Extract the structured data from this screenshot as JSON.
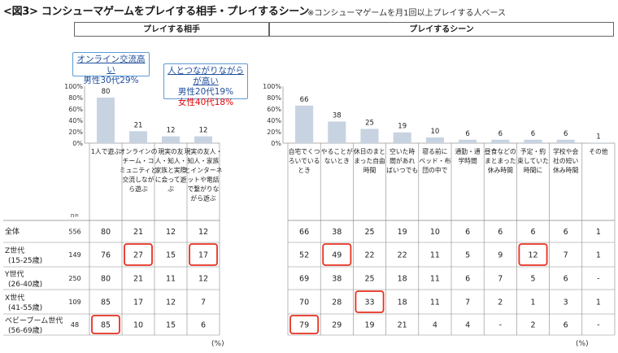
{
  "header": {
    "title": "<図3> コンシューマゲームをプレイする相手・プレイするシーン",
    "note": "※コンシューマゲームを月1回以上プレイする人ベース"
  },
  "sections": {
    "left": "プレイする相手",
    "right": "プレイするシーン"
  },
  "callouts": {
    "left": {
      "line1": "オンライン交流高い",
      "line2": "男性30代29%"
    },
    "right": {
      "line1": "人とつながりながらが高い",
      "line2": "男性20代19%",
      "line3": "女性40代18%"
    }
  },
  "colors": {
    "bar": "#c8d3e2",
    "highlight": "#e83020",
    "callout_border": "#5b9bd5"
  },
  "chart_data": {
    "type": "bar",
    "title": "コンシューマゲームをプレイする相手・プレイするシーン",
    "ylim": [
      0,
      100
    ],
    "yticks": [
      "100%",
      "80%",
      "60%",
      "40%",
      "20%",
      "0%"
    ],
    "n_label": "n=",
    "unit": "(%)",
    "groups": [
      {
        "name": "プレイする相手",
        "categories": [
          "1人で遊ぶ",
          "オンラインのチーム・コミュニティと交流しながら遊ぶ",
          "現実の友人・知人・家族と実際に会って遊ぶ",
          "現実の友人・知人・家族とインターネットや電話で繋がりながら遊ぶ"
        ],
        "category_lines": [
          [
            "1人で遊ぶ"
          ],
          [
            "オンラインの",
            "チーム・コ",
            "ミュニティと",
            "交流しなが",
            "ら遊ぶ"
          ],
          [
            "現実の友",
            "人・知人・",
            "家族と実際",
            "に会って遊",
            "ぶ"
          ],
          [
            "現実の友人・",
            "知人・家族",
            "とインターネ",
            "ットや電話",
            "で繋がりな",
            "がら遊ぶ"
          ]
        ],
        "values": [
          80,
          21,
          12,
          12
        ]
      },
      {
        "name": "プレイするシーン",
        "categories": [
          "自宅でくつろいでいるとき",
          "やることがないとき",
          "休日のまとまった自由時間",
          "空いた時間があればいつでも",
          "寝る前にベッド・布団の中で",
          "通勤・通学時間",
          "昼食などのまとまった休み時間",
          "予定・約束していた時間に",
          "学校や会社の短い休み時間",
          "その他"
        ],
        "category_lines": [
          [
            "自宅でくつ",
            "ろいでいる",
            "とき"
          ],
          [
            "やることが",
            "ないとき"
          ],
          [
            "休日のまと",
            "まった自由",
            "時間"
          ],
          [
            "空いた時",
            "間があれ",
            "ばいつでも"
          ],
          [
            "寝る前に",
            "ベッド・布",
            "団の中で"
          ],
          [
            "通勤・通",
            "学時間"
          ],
          [
            "昼食などの",
            "まとまった",
            "休み時間"
          ],
          [
            "予定・約",
            "束していた",
            "時間に"
          ],
          [
            "学校や会",
            "社の短い",
            "休み時間"
          ],
          [
            "その他"
          ]
        ],
        "values": [
          66,
          38,
          25,
          19,
          10,
          6,
          6,
          6,
          6,
          1
        ]
      }
    ],
    "rows": [
      {
        "label": "全体",
        "sub": "",
        "n": "556",
        "left": [
          "80",
          "21",
          "12",
          "12"
        ],
        "right": [
          "66",
          "38",
          "25",
          "19",
          "10",
          "6",
          "6",
          "6",
          "6",
          "1"
        ]
      },
      {
        "label": "Z世代",
        "sub": "(15-25歳)",
        "n": "149",
        "left": [
          "76",
          "27",
          "15",
          "17"
        ],
        "right": [
          "52",
          "49",
          "22",
          "22",
          "11",
          "5",
          "9",
          "12",
          "7",
          "1"
        ]
      },
      {
        "label": "Y世代",
        "sub": "(26-40歳)",
        "n": "250",
        "left": [
          "80",
          "21",
          "11",
          "12"
        ],
        "right": [
          "69",
          "38",
          "25",
          "18",
          "11",
          "6",
          "7",
          "5",
          "6",
          "-"
        ]
      },
      {
        "label": "X世代",
        "sub": "(41-55歳)",
        "n": "109",
        "left": [
          "85",
          "17",
          "12",
          "7"
        ],
        "right": [
          "70",
          "28",
          "33",
          "18",
          "11",
          "7",
          "2",
          "1",
          "3",
          "1"
        ]
      },
      {
        "label": "ベビーブーム世代",
        "sub": "(56-69歳)",
        "n": "48",
        "left": [
          "85",
          "10",
          "15",
          "6"
        ],
        "right": [
          "79",
          "29",
          "19",
          "21",
          "4",
          "4",
          "-",
          "2",
          "6",
          "-"
        ]
      }
    ],
    "highlights": [
      {
        "row": 1,
        "group": "left",
        "col": 1
      },
      {
        "row": 1,
        "group": "left",
        "col": 3
      },
      {
        "row": 4,
        "group": "left",
        "col": 0
      },
      {
        "row": 1,
        "group": "right",
        "col": 1
      },
      {
        "row": 1,
        "group": "right",
        "col": 7
      },
      {
        "row": 3,
        "group": "right",
        "col": 2
      },
      {
        "row": 4,
        "group": "right",
        "col": 0
      }
    ]
  }
}
